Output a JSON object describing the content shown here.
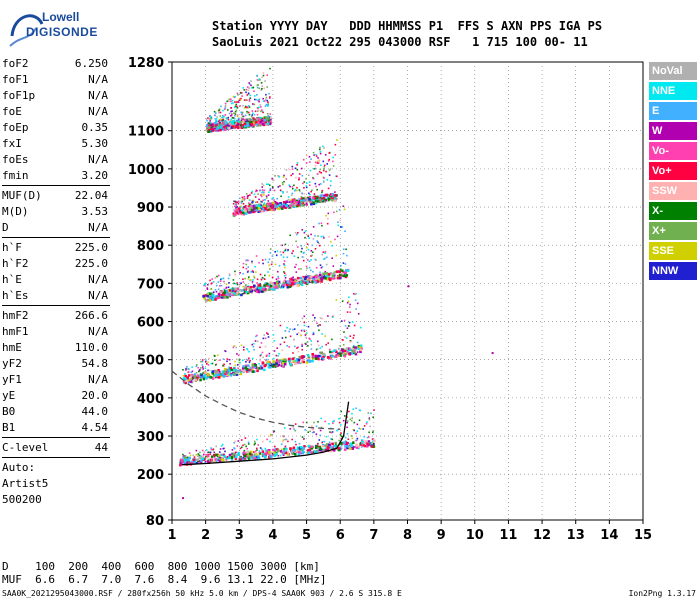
{
  "logo": {
    "brand": "Lowell",
    "product": "DIGISONDE"
  },
  "header": {
    "line1": "Station YYYY DAY   DDD HHMMSS P1  FFS S AXN PPS IGA PS",
    "line2": "SaoLuis 2021 Oct22 295 043000 RSF   1 715 100 00- 11"
  },
  "params": {
    "group1": [
      {
        "key": "foF2",
        "value": "6.250"
      },
      {
        "key": "foF1",
        "value": "N/A"
      },
      {
        "key": "foF1p",
        "value": "N/A"
      },
      {
        "key": "foE",
        "value": "N/A"
      },
      {
        "key": "foEp",
        "value": "0.35"
      },
      {
        "key": "fxI",
        "value": "5.30"
      },
      {
        "key": "foEs",
        "value": "N/A"
      },
      {
        "key": "fmin",
        "value": "3.20"
      }
    ],
    "group2": [
      {
        "key": "MUF(D)",
        "value": "22.04"
      },
      {
        "key": "M(D)",
        "value": "3.53"
      },
      {
        "key": "D",
        "value": "N/A"
      }
    ],
    "group3": [
      {
        "key": "h`F",
        "value": "225.0"
      },
      {
        "key": "h`F2",
        "value": "225.0"
      },
      {
        "key": "h`E",
        "value": "N/A"
      },
      {
        "key": "h`Es",
        "value": "N/A"
      }
    ],
    "group4": [
      {
        "key": "hmF2",
        "value": "266.6"
      },
      {
        "key": "hmF1",
        "value": "N/A"
      },
      {
        "key": "hmE",
        "value": "110.0"
      },
      {
        "key": "yF2",
        "value": "54.8"
      },
      {
        "key": "yF1",
        "value": "N/A"
      },
      {
        "key": "yE",
        "value": "20.0"
      },
      {
        "key": "B0",
        "value": "44.0"
      },
      {
        "key": "B1",
        "value": "4.54"
      }
    ],
    "clevel": {
      "key": "C-level",
      "value": "44"
    },
    "auto": [
      "Auto:",
      "Artist5",
      "500200"
    ]
  },
  "legend": [
    {
      "label": "NoVal",
      "color": "#b0b0b0"
    },
    {
      "label": "NNE",
      "color": "#00e8f0"
    },
    {
      "label": "E",
      "color": "#40b0ff"
    },
    {
      "label": "W",
      "color": "#b000b0"
    },
    {
      "label": "Vo-",
      "color": "#ff40b0"
    },
    {
      "label": "Vo+",
      "color": "#ff0040"
    },
    {
      "label": "SSW",
      "color": "#ffb0b0"
    },
    {
      "label": "X-",
      "color": "#008000"
    },
    {
      "label": "X+",
      "color": "#70b050"
    },
    {
      "label": "SSE",
      "color": "#d0d000"
    },
    {
      "label": "NNW",
      "color": "#2020d0"
    }
  ],
  "dmuf": {
    "line1": "D    100  200  400  600  800 1000 1500 3000 [km]",
    "line2": "MUF  6.6  6.7  7.0  7.6  8.4  9.6 13.1 22.0 [MHz]"
  },
  "footer": "SAA0K_2021295043000.RSF / 280fx256h 50 kHz 5.0 km / DPS-4 SAA0K 903 / 2.6 S 315.8 E",
  "version": "Ion2Png 1.3.17",
  "chart_data": {
    "type": "scatter",
    "title": "",
    "xlabel": "",
    "ylabel": "",
    "xlim": [
      1,
      15
    ],
    "ylim": [
      80,
      1280
    ],
    "x_ticks": [
      1,
      2,
      3,
      4,
      5,
      6,
      7,
      8,
      9,
      10,
      11,
      12,
      13,
      14,
      15
    ],
    "y_ticks": [
      80,
      200,
      300,
      400,
      500,
      600,
      700,
      800,
      900,
      1000,
      1100,
      1280
    ],
    "grid": true,
    "legend_position": "right",
    "traces": [
      {
        "name": "profile",
        "style": "solid",
        "color": "#000000",
        "x": [
          1.3,
          2.0,
          3.0,
          4.0,
          5.0,
          5.5,
          5.9,
          6.1,
          6.25
        ],
        "y": [
          225,
          228,
          234,
          240,
          250,
          258,
          268,
          300,
          390
        ]
      },
      {
        "name": "trace",
        "style": "dashed",
        "color": "#555555",
        "x": [
          1.0,
          1.5,
          2.0,
          2.5,
          3.0,
          3.5,
          4.0,
          4.5,
          5.0,
          5.5,
          6.0
        ],
        "y": [
          470,
          435,
          405,
          382,
          362,
          347,
          336,
          328,
          323,
          320,
          318
        ]
      }
    ],
    "echo_bands": [
      {
        "name": "F1 hop",
        "x_range": [
          1.2,
          7.0
        ],
        "y_base": [
          225,
          275
        ],
        "spread": 90
      },
      {
        "name": "F2 hop",
        "x_range": [
          1.3,
          6.6
        ],
        "y_base": [
          440,
          520
        ],
        "spread": 130
      },
      {
        "name": "F3 hop",
        "x_range": [
          1.9,
          6.2
        ],
        "y_base": [
          655,
          720
        ],
        "spread": 150
      },
      {
        "name": "F4 hop",
        "x_range": [
          2.8,
          5.9
        ],
        "y_base": [
          880,
          920
        ],
        "spread": 130
      },
      {
        "name": "F5 hop",
        "x_range": [
          2.0,
          3.9
        ],
        "y_base": [
          1100,
          1120
        ],
        "spread": 120
      }
    ],
    "isolated_points": [
      {
        "x": 1.3,
        "y": 140
      },
      {
        "x": 8.0,
        "y": 695
      },
      {
        "x": 10.5,
        "y": 520
      }
    ]
  }
}
